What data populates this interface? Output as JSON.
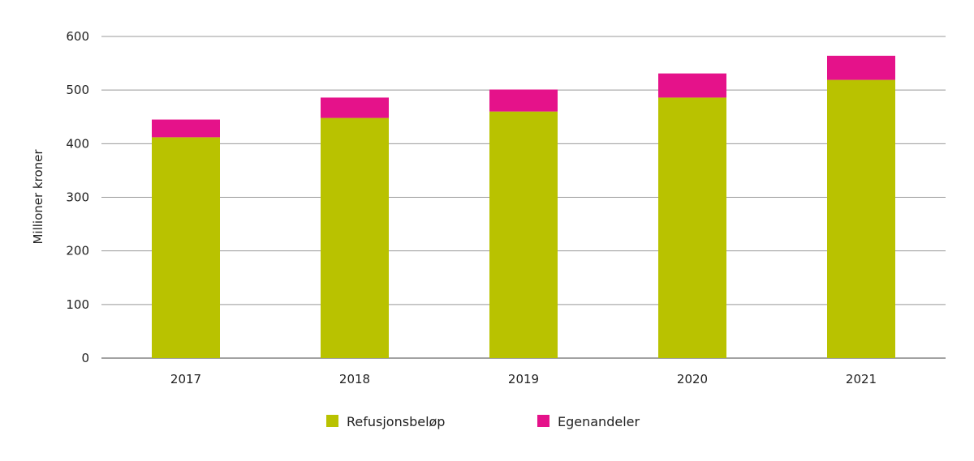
{
  "chart_data": {
    "type": "bar",
    "stacked": true,
    "title": "",
    "xlabel": "",
    "ylabel": "Millioner kroner",
    "ylim": [
      0,
      600
    ],
    "yticks": [
      0,
      100,
      200,
      300,
      400,
      500,
      600
    ],
    "grid": true,
    "legend_placement": "bottom",
    "categories": [
      "2017",
      "2018",
      "2019",
      "2020",
      "2021"
    ],
    "series": [
      {
        "name": "Refusjonsbeløp",
        "color": "#b9c200",
        "values": [
          412,
          448,
          460,
          486,
          519
        ]
      },
      {
        "name": "Egenandeler",
        "color": "#e5128a",
        "values": [
          33,
          38,
          41,
          45,
          45
        ]
      }
    ]
  }
}
